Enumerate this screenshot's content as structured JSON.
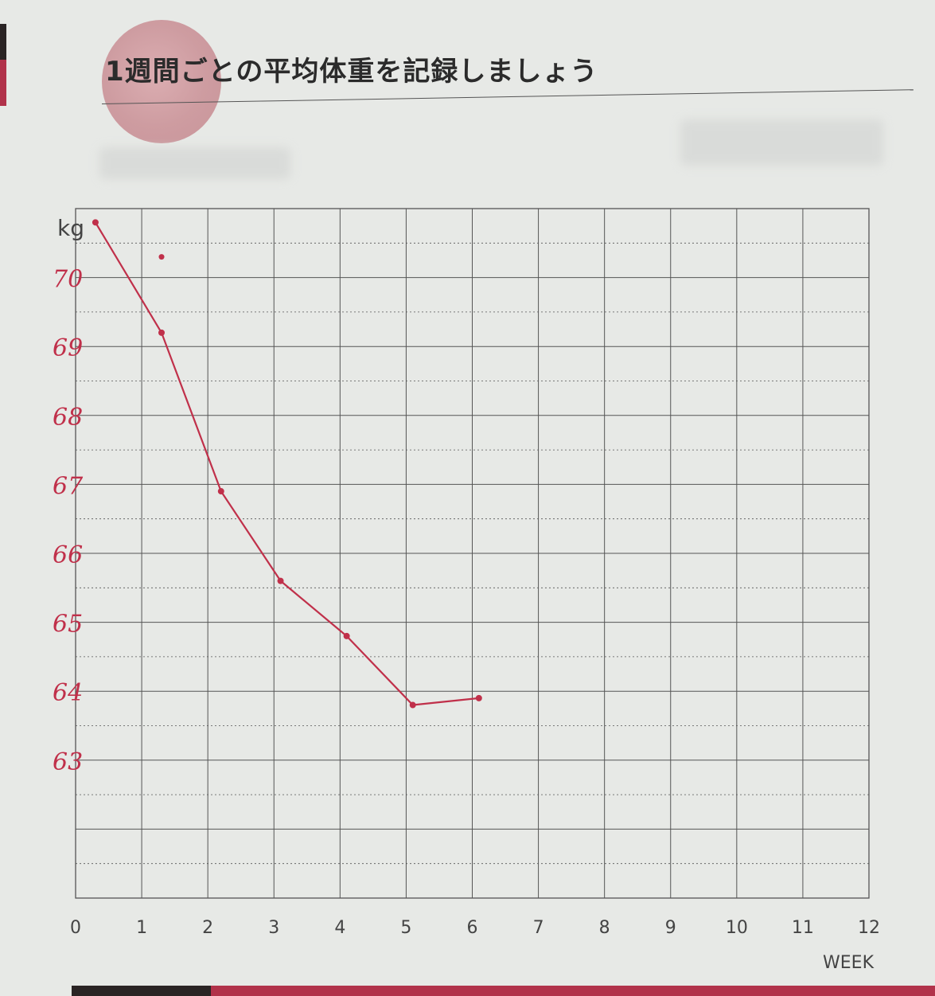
{
  "heading": "1週間ごとの平均体重を記録しましょう",
  "colors": {
    "accent": "#c0304a",
    "grid": "#555555",
    "heading": "#2b2b2b"
  },
  "chart_data": {
    "type": "line",
    "title": "",
    "unit_label": "kg",
    "xlabel": "WEEK",
    "x_ticks": [
      "0",
      "1",
      "2",
      "3",
      "4",
      "5",
      "6",
      "7",
      "8",
      "9",
      "10",
      "11",
      "12"
    ],
    "y_ticks": [
      "70",
      "69",
      "68",
      "67",
      "66",
      "65",
      "64",
      "63"
    ],
    "xlim": [
      0,
      12
    ],
    "ylim": [
      61,
      71
    ],
    "grid": true,
    "series": [
      {
        "segments": [
          [
            {
              "x": 0.3,
              "y": 70.8
            },
            {
              "x": 1.3,
              "y": 69.2
            },
            {
              "x": 2.2,
              "y": 66.9
            },
            {
              "x": 3.1,
              "y": 65.6
            },
            {
              "x": 4.1,
              "y": 64.8
            },
            {
              "x": 5.1,
              "y": 63.8
            }
          ],
          [
            {
              "x": 5.1,
              "y": 63.8
            },
            {
              "x": 6.1,
              "y": 63.9
            }
          ]
        ],
        "isolated_points": [
          {
            "x": 1.3,
            "y": 70.3
          }
        ]
      }
    ]
  }
}
